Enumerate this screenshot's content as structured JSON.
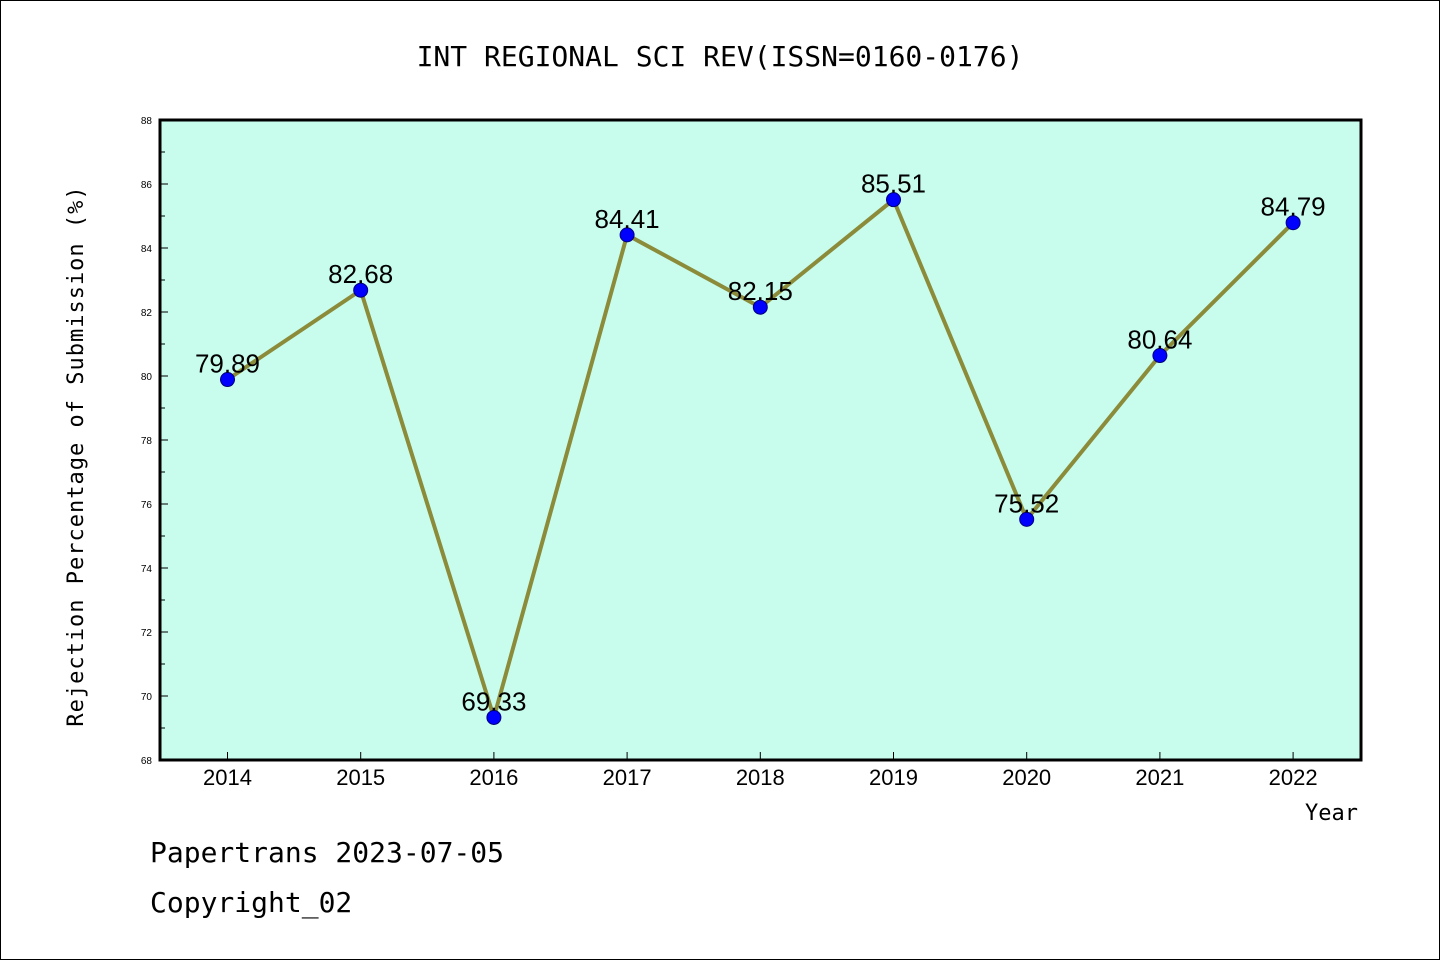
{
  "chart_data": {
    "type": "line",
    "title": "INT REGIONAL SCI REV(ISSN=0160-0176)",
    "xlabel": "Year",
    "ylabel": "Rejection Percentage of Submission (%)",
    "ylim": [
      68,
      88
    ],
    "yticks": [
      68,
      70,
      72,
      74,
      76,
      78,
      80,
      82,
      84,
      86,
      88
    ],
    "categories": [
      "2014",
      "2015",
      "2016",
      "2017",
      "2018",
      "2019",
      "2020",
      "2021",
      "2022"
    ],
    "values": [
      79.89,
      82.68,
      69.33,
      84.41,
      82.15,
      85.51,
      75.52,
      80.64,
      84.79
    ],
    "data_labels": [
      "79.89",
      "82.68",
      "69.33",
      "84.41",
      "82.15",
      "85.51",
      "75.52",
      "80.64",
      "84.79"
    ],
    "grid": false,
    "colors": {
      "background": "#c8fdee",
      "line": "#8b8b3a",
      "marker": "#0000ff"
    }
  },
  "footer": {
    "line1": "Papertrans 2023-07-05",
    "line2": "Copyright_02"
  }
}
